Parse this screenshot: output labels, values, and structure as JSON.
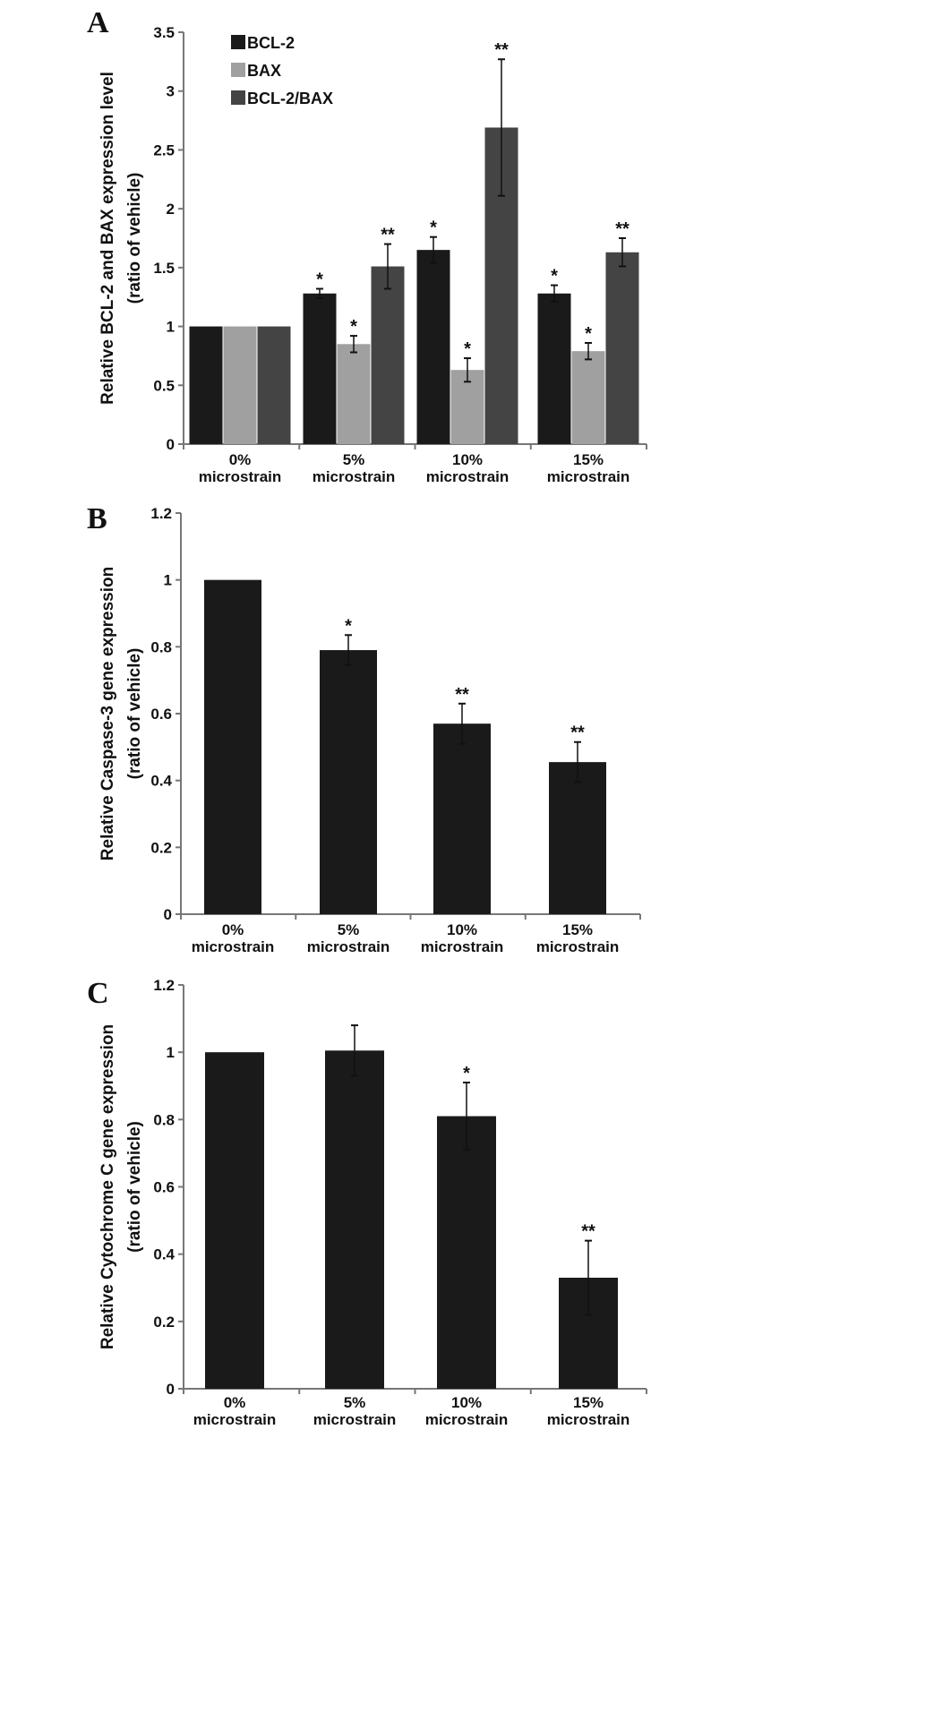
{
  "chart_data": [
    {
      "panel_label": "A",
      "type": "bar",
      "ylabel": [
        "Relative BCL-2 and BAX expression level",
        "(ratio of vehicle)"
      ],
      "ylim": [
        0,
        3.5
      ],
      "yticks": [
        "0",
        "0.5",
        "1",
        "1.5",
        "2",
        "2.5",
        "3",
        "3.5"
      ],
      "categories": [
        [
          "0%",
          "microstrain"
        ],
        [
          "5%",
          "microstrain"
        ],
        [
          "10%",
          "microstrain"
        ],
        [
          "15%",
          "microstrain"
        ]
      ],
      "legend_position": "top-left",
      "series": [
        {
          "name": "BCL-2",
          "color": "#1a1a1a",
          "values": [
            1.0,
            1.28,
            1.65,
            1.28
          ],
          "errors": [
            0.0,
            0.04,
            0.11,
            0.07
          ],
          "sig": [
            "",
            "*",
            "*",
            "*"
          ]
        },
        {
          "name": "BAX",
          "color": "#a0a0a0",
          "values": [
            1.0,
            0.85,
            0.63,
            0.79
          ],
          "errors": [
            0.0,
            0.07,
            0.1,
            0.07
          ],
          "sig": [
            "",
            "*",
            "*",
            "*"
          ]
        },
        {
          "name": "BCL-2/BAX",
          "color": "#444444",
          "values": [
            1.0,
            1.51,
            2.69,
            1.63
          ],
          "errors": [
            0.0,
            0.19,
            0.58,
            0.12
          ],
          "sig": [
            "",
            "**",
            "**",
            "**"
          ]
        }
      ]
    },
    {
      "panel_label": "B",
      "type": "bar",
      "ylabel": [
        "Relative Caspase-3 gene expression",
        "(ratio of vehicle)"
      ],
      "ylim": [
        0,
        1.2
      ],
      "yticks": [
        "0",
        "0.2",
        "0.4",
        "0.6",
        "0.8",
        "1",
        "1.2"
      ],
      "categories": [
        [
          "0%",
          "microstrain"
        ],
        [
          "5%",
          "microstrain"
        ],
        [
          "10%",
          "microstrain"
        ],
        [
          "15%",
          "microstrain"
        ]
      ],
      "series": [
        {
          "name": "Caspase-3",
          "color": "#1a1a1a",
          "values": [
            1.0,
            0.79,
            0.57,
            0.455
          ],
          "errors": [
            0.0,
            0.045,
            0.06,
            0.06
          ],
          "sig": [
            "",
            "*",
            "**",
            "**"
          ]
        }
      ]
    },
    {
      "panel_label": "C",
      "type": "bar",
      "ylabel": [
        "Relative Cytochrome C gene expression",
        "(ratio of vehicle)"
      ],
      "ylim": [
        0,
        1.2
      ],
      "yticks": [
        "0",
        "0.2",
        "0.4",
        "0.6",
        "0.8",
        "1",
        "1.2"
      ],
      "categories": [
        [
          "0%",
          "microstrain"
        ],
        [
          "5%",
          "microstrain"
        ],
        [
          "10%",
          "microstrain"
        ],
        [
          "15%",
          "microstrain"
        ]
      ],
      "series": [
        {
          "name": "Cytochrome C",
          "color": "#1a1a1a",
          "values": [
            1.0,
            1.005,
            0.81,
            0.33
          ],
          "errors": [
            0.0,
            0.075,
            0.1,
            0.11
          ],
          "sig": [
            "",
            "",
            "*",
            "**"
          ]
        }
      ]
    }
  ]
}
